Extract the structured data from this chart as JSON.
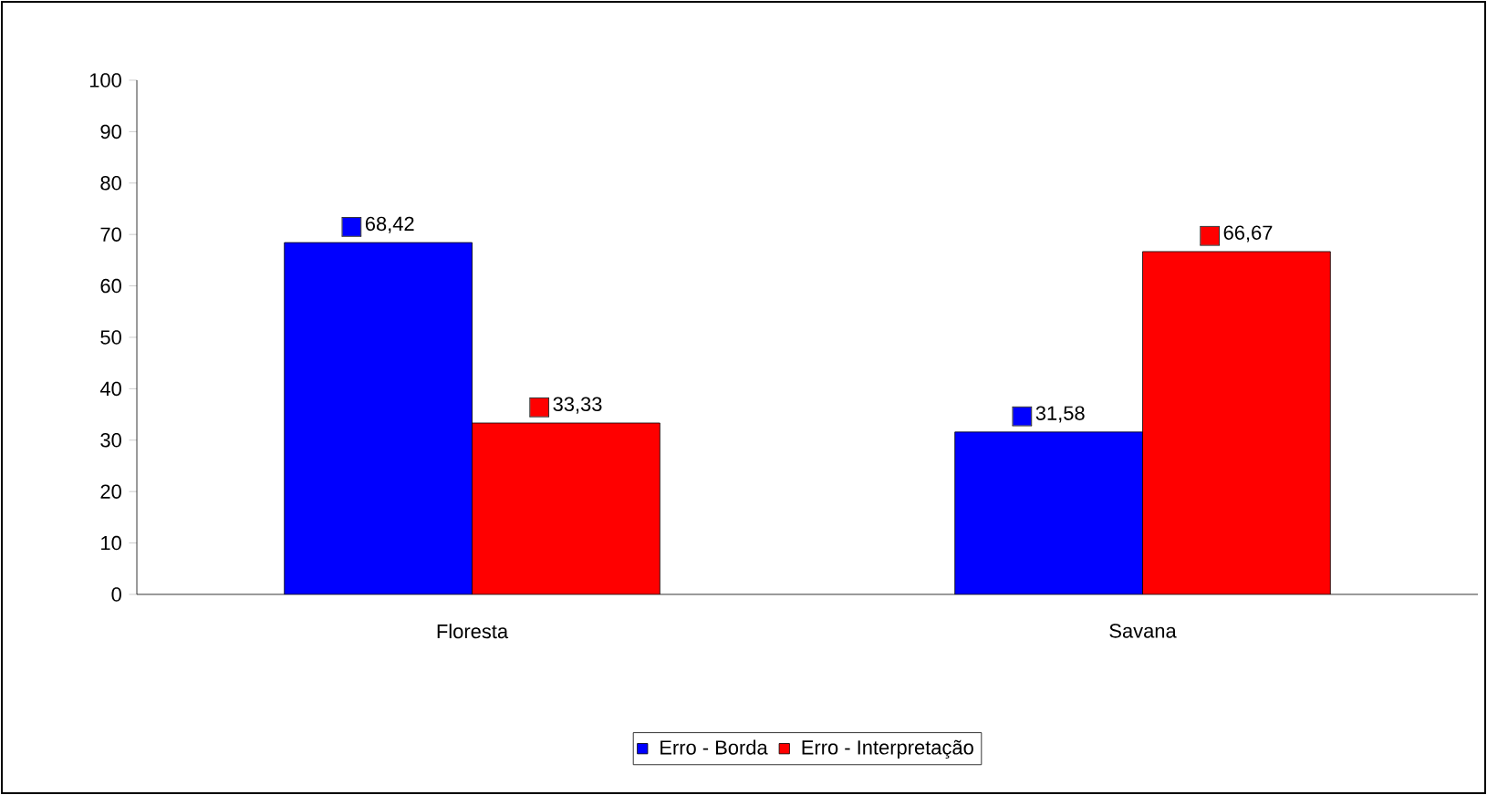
{
  "chart_data": {
    "type": "bar",
    "categories": [
      "Floresta",
      "Savana"
    ],
    "series": [
      {
        "name": "Erro - Borda",
        "color": "#0000ff",
        "values": [
          68.42,
          31.58
        ],
        "value_labels": [
          "68,42",
          "31,58"
        ]
      },
      {
        "name": "Erro - Interpretação",
        "color": "#ff0000",
        "values": [
          33.33,
          66.67
        ],
        "value_labels": [
          "33,33",
          "66,67"
        ]
      }
    ],
    "ylim": [
      0,
      100
    ],
    "yticks": [
      0,
      10,
      20,
      30,
      40,
      50,
      60,
      70,
      80,
      90,
      100
    ],
    "grid": false,
    "legend": "bottom"
  }
}
